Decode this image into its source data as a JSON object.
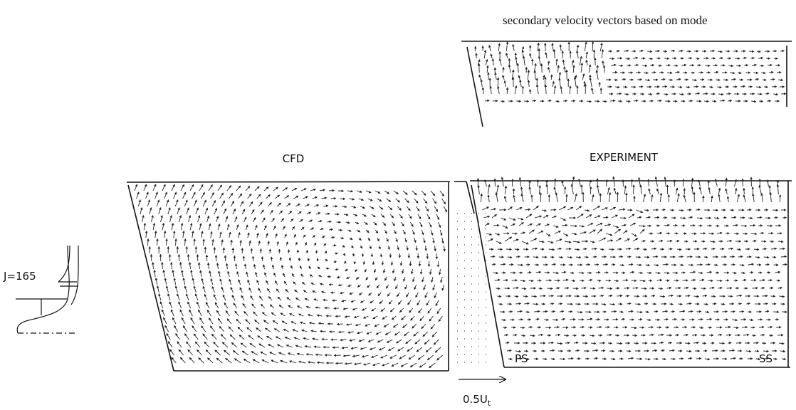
{
  "figure": {
    "caption": "secondary velocity vectors based on mode",
    "panels": {
      "cfd": "CFD",
      "experiment": "EXPERIMENT"
    },
    "labels": {
      "location": "J=165",
      "pressure_side": "PS",
      "suction_side": "SS",
      "scale": {
        "text": "0.5U",
        "subscript": "t"
      }
    }
  }
}
